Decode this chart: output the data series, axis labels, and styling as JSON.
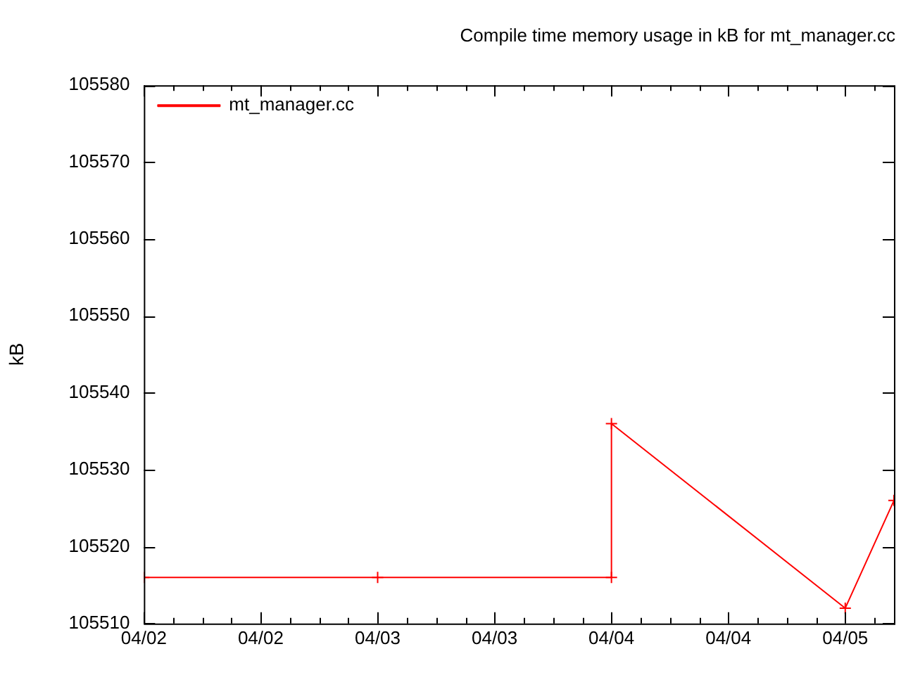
{
  "chart_data": {
    "type": "line",
    "title": "Compile time memory usage in kB for mt_manager.cc",
    "ylabel": "kB",
    "x": [
      "--04-02T00:00",
      "--04-03T00:00",
      "--04-04T00:00",
      "--04-04T00:00",
      "--04-05T00:00",
      "--04-05T05:00"
    ],
    "series": [
      {
        "name": "mt_manager.cc",
        "color": "#ff0000",
        "values": [
          105516,
          105516,
          105516,
          105536,
          105512,
          105526
        ]
      }
    ],
    "xlim": [
      "--04-02T00:00",
      "--04-05T05:00"
    ],
    "xticks": [
      {
        "value": "--04-02T00:00",
        "label": "04/02"
      },
      {
        "value": "--04-02T03:00",
        "label": null
      },
      {
        "value": "--04-02T06:00",
        "label": null
      },
      {
        "value": "--04-02T09:00",
        "label": null
      },
      {
        "value": "--04-02T12:00",
        "label": "04/02"
      },
      {
        "value": "--04-02T15:00",
        "label": null
      },
      {
        "value": "--04-02T18:00",
        "label": null
      },
      {
        "value": "--04-02T21:00",
        "label": null
      },
      {
        "value": "--04-03T00:00",
        "label": "04/03"
      },
      {
        "value": "--04-03T03:00",
        "label": null
      },
      {
        "value": "--04-03T06:00",
        "label": null
      },
      {
        "value": "--04-03T09:00",
        "label": null
      },
      {
        "value": "--04-03T12:00",
        "label": "04/03"
      },
      {
        "value": "--04-03T15:00",
        "label": null
      },
      {
        "value": "--04-03T18:00",
        "label": null
      },
      {
        "value": "--04-03T21:00",
        "label": null
      },
      {
        "value": "--04-04T00:00",
        "label": "04/04"
      },
      {
        "value": "--04-04T03:00",
        "label": null
      },
      {
        "value": "--04-04T06:00",
        "label": null
      },
      {
        "value": "--04-04T09:00",
        "label": null
      },
      {
        "value": "--04-04T12:00",
        "label": "04/04"
      },
      {
        "value": "--04-04T15:00",
        "label": null
      },
      {
        "value": "--04-04T18:00",
        "label": null
      },
      {
        "value": "--04-04T21:00",
        "label": null
      },
      {
        "value": "--04-05T00:00",
        "label": "04/05"
      },
      {
        "value": "--04-05T03:00",
        "label": null
      }
    ],
    "ylim": [
      105510,
      105580
    ],
    "yticks": [
      105510,
      105520,
      105530,
      105540,
      105550,
      105560,
      105570,
      105580
    ],
    "legend": "top left",
    "marker": "cross",
    "line_style": "solid"
  }
}
